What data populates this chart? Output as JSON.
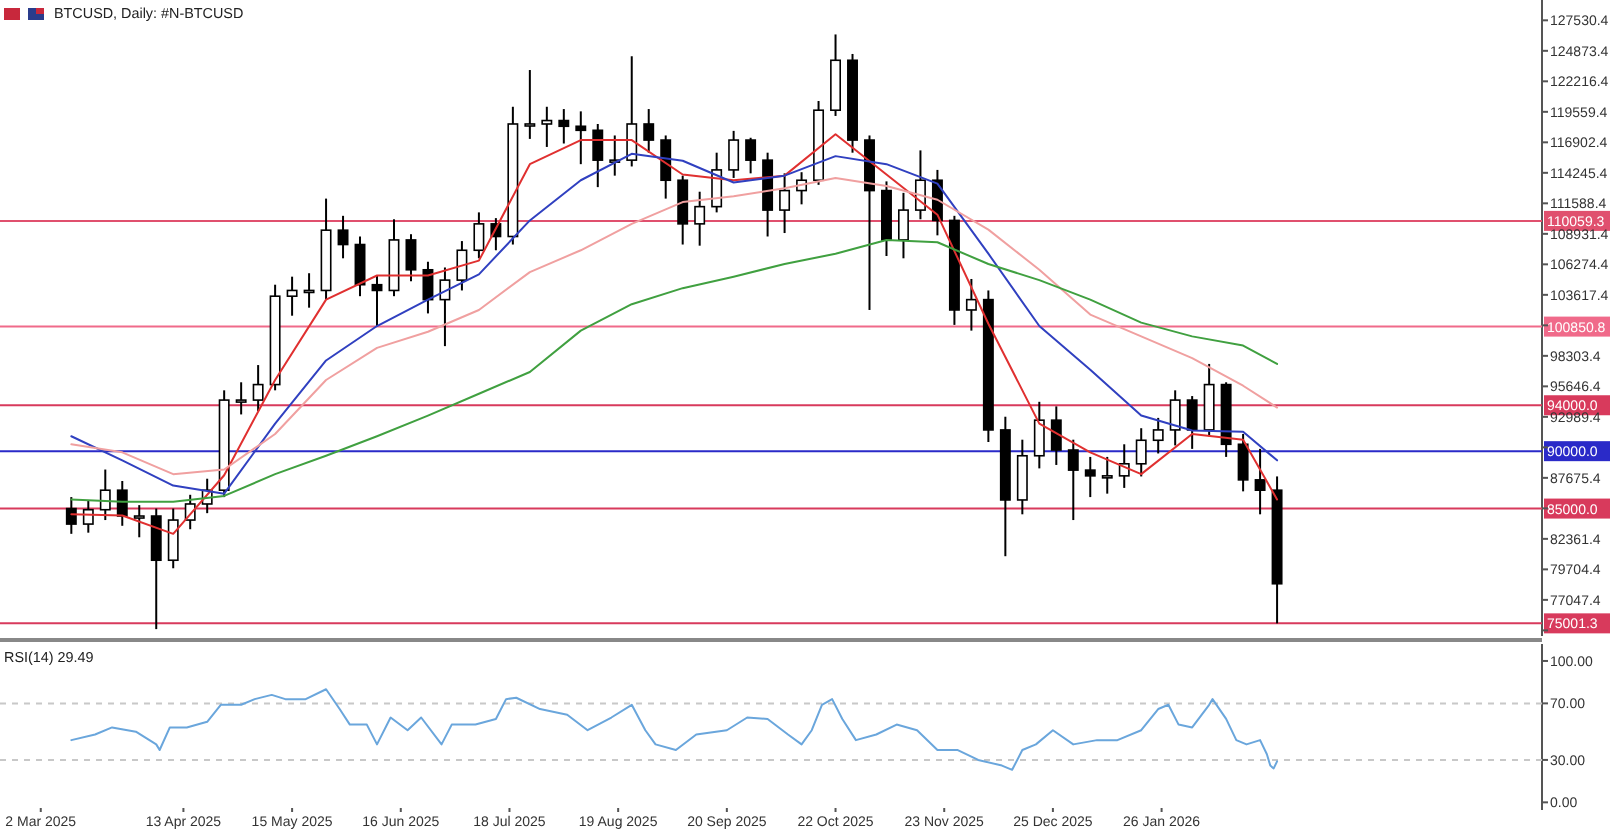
{
  "chart_data": [
    {
      "type": "candlestick",
      "title": "BTCUSD, Daily: #N-BTCUSD",
      "tick_labels": "y",
      "xlim": [
        "2025-02-18",
        "2026-05-18"
      ],
      "ylim": [
        73900,
        129300
      ],
      "yticks": [
        127530.4,
        124873.4,
        122216.4,
        119559.4,
        116902.4,
        114245.4,
        111588.4,
        108931.4,
        106274.4,
        103617.4,
        {
          "value": 100960.4,
          "label": null
        },
        98303.4,
        95646.4,
        92989.4,
        {
          "value": 90332.4,
          "label": null
        },
        87675.4,
        {
          "value": 85018.4,
          "label": null
        },
        82361.4,
        79704.4,
        77047.4,
        {
          "value": 74390.4,
          "label": null
        }
      ],
      "x": [
        "2025-03-11",
        "2025-03-16",
        "2025-03-21",
        "2025-03-26",
        "2025-03-31",
        "2025-04-05",
        "2025-04-10",
        "2025-04-15",
        "2025-04-20",
        "2025-04-25",
        "2025-04-30",
        "2025-05-05",
        "2025-05-10",
        "2025-05-15",
        "2025-05-20",
        "2025-05-25",
        "2025-05-30",
        "2025-06-04",
        "2025-06-09",
        "2025-06-14",
        "2025-06-19",
        "2025-06-24",
        "2025-06-29",
        "2025-07-04",
        "2025-07-09",
        "2025-07-14",
        "2025-07-19",
        "2025-07-24",
        "2025-07-29",
        "2025-08-03",
        "2025-08-08",
        "2025-08-13",
        "2025-08-18",
        "2025-08-23",
        "2025-08-28",
        "2025-09-02",
        "2025-09-07",
        "2025-09-12",
        "2025-09-17",
        "2025-09-22",
        "2025-09-27",
        "2025-10-02",
        "2025-10-07",
        "2025-10-12",
        "2025-10-17",
        "2025-10-22",
        "2025-10-27",
        "2025-11-01",
        "2025-11-06",
        "2025-11-11",
        "2025-11-16",
        "2025-11-21",
        "2025-11-26",
        "2025-12-01",
        "2025-12-06",
        "2025-12-11",
        "2025-12-16",
        "2025-12-21",
        "2025-12-26",
        "2025-12-31",
        "2026-01-05",
        "2026-01-10",
        "2026-01-15",
        "2026-01-20",
        "2026-01-25",
        "2026-01-30",
        "2026-02-04",
        "2026-02-09",
        "2026-02-14",
        "2026-02-19",
        "2026-02-24",
        "2026-03-01"
      ],
      "ohlc": [
        [
          85000,
          86000,
          82800,
          83650
        ],
        [
          83650,
          85700,
          82900,
          84900
        ],
        [
          84900,
          88400,
          84000,
          86600
        ],
        [
          86600,
          87400,
          83500,
          84350
        ],
        [
          84350,
          85300,
          82500,
          84350
        ],
        [
          84350,
          85000,
          74500,
          80500
        ],
        [
          80500,
          85000,
          79800,
          84000
        ],
        [
          84000,
          86200,
          83200,
          85400
        ],
        [
          85400,
          87600,
          84600,
          86600
        ],
        [
          86600,
          95300,
          86000,
          94450
        ],
        [
          94450,
          96000,
          93200,
          94450
        ],
        [
          94450,
          97500,
          93500,
          95800
        ],
        [
          95800,
          104500,
          95300,
          103500
        ],
        [
          103500,
          105200,
          101800,
          104000
        ],
        [
          104000,
          105500,
          102500,
          104000
        ],
        [
          104000,
          112000,
          103200,
          109250
        ],
        [
          109250,
          110500,
          106800,
          108000
        ],
        [
          108000,
          108700,
          103500,
          104500
        ],
        [
          104500,
          105300,
          100900,
          104000
        ],
        [
          104000,
          110200,
          103500,
          108400
        ],
        [
          108400,
          108900,
          104800,
          105800
        ],
        [
          105800,
          106500,
          102000,
          103200
        ],
        [
          103200,
          106000,
          99150,
          104900
        ],
        [
          104900,
          108300,
          104000,
          107500
        ],
        [
          107500,
          110800,
          106800,
          109800
        ],
        [
          109800,
          110300,
          107500,
          108700
        ],
        [
          108700,
          120000,
          108000,
          118500
        ],
        [
          118500,
          123200,
          117200,
          118500
        ],
        [
          118500,
          120000,
          116500,
          118800
        ],
        [
          118800,
          119800,
          116800,
          118300
        ],
        [
          118300,
          119600,
          115000,
          117950
        ],
        [
          117950,
          118500,
          113000,
          115350
        ],
        [
          115350,
          117500,
          114000,
          115350
        ],
        [
          115350,
          124400,
          114800,
          118500
        ],
        [
          118500,
          119800,
          116000,
          117100
        ],
        [
          117100,
          117500,
          112000,
          113600
        ],
        [
          113600,
          114000,
          108000,
          109800
        ],
        [
          109800,
          112600,
          107900,
          111300
        ],
        [
          111300,
          116000,
          110800,
          114500
        ],
        [
          114500,
          117900,
          113800,
          117100
        ],
        [
          117100,
          117300,
          114200,
          115350
        ],
        [
          115350,
          116000,
          108700,
          111000
        ],
        [
          111000,
          114200,
          109000,
          112700
        ],
        [
          112700,
          114300,
          111500,
          113600
        ],
        [
          113600,
          120500,
          113200,
          119700
        ],
        [
          119700,
          126300,
          119200,
          124050
        ],
        [
          124050,
          124600,
          116000,
          117100
        ],
        [
          117100,
          117500,
          102300,
          112700
        ],
        [
          112700,
          113500,
          107000,
          108400
        ],
        [
          108400,
          112500,
          106800,
          111000
        ],
        [
          111000,
          116200,
          110200,
          113600
        ],
        [
          113600,
          114500,
          108800,
          110100
        ],
        [
          110100,
          110500,
          101000,
          102300
        ],
        [
          102300,
          105000,
          100500,
          103200
        ],
        [
          103200,
          104000,
          90800,
          91850
        ],
        [
          91850,
          93000,
          80850,
          85750
        ],
        [
          85750,
          91000,
          84500,
          89600
        ],
        [
          89600,
          94300,
          88500,
          92700
        ],
        [
          92700,
          93900,
          88800,
          90100
        ],
        [
          90100,
          91000,
          84000,
          88350
        ],
        [
          88350,
          89500,
          86000,
          87850
        ],
        [
          87850,
          89500,
          86300,
          87850
        ],
        [
          87850,
          90600,
          86800,
          88900
        ],
        [
          88900,
          92000,
          87800,
          90950
        ],
        [
          90950,
          92900,
          89800,
          91850
        ],
        [
          91850,
          95300,
          90500,
          94450
        ],
        [
          94450,
          94800,
          90200,
          91850
        ],
        [
          91850,
          97600,
          91300,
          95800
        ],
        [
          95800,
          96000,
          89500,
          90600
        ],
        [
          90600,
          91500,
          86500,
          87500
        ],
        [
          87500,
          90200,
          84500,
          86600
        ],
        [
          86600,
          87800,
          75000,
          78450
        ]
      ],
      "series": [
        {
          "type": "line",
          "color": "#e03030",
          "x": [
            "2025-03-11",
            "2025-03-26",
            "2025-04-10",
            "2025-04-25",
            "2025-05-10",
            "2025-05-25",
            "2025-06-09",
            "2025-06-24",
            "2025-07-09",
            "2025-07-24",
            "2025-08-08",
            "2025-08-23",
            "2025-09-07",
            "2025-09-22",
            "2025-10-07",
            "2025-10-22",
            "2025-11-06",
            "2025-11-21",
            "2025-12-06",
            "2025-12-21",
            "2026-01-05",
            "2026-01-20",
            "2026-02-04",
            "2026-02-19",
            "2026-03-01"
          ],
          "values": [
            84500,
            84400,
            82800,
            87900,
            96200,
            103200,
            105300,
            105300,
            106600,
            115000,
            117100,
            117100,
            114100,
            113600,
            114000,
            117600,
            114100,
            110600,
            101100,
            92400,
            89900,
            88000,
            91500,
            91000,
            85800
          ]
        },
        {
          "type": "line",
          "color": "#3040c0",
          "x": [
            "2025-03-11",
            "2025-03-26",
            "2025-04-10",
            "2025-04-25",
            "2025-05-10",
            "2025-05-25",
            "2025-06-09",
            "2025-06-24",
            "2025-07-09",
            "2025-07-24",
            "2025-08-08",
            "2025-08-23",
            "2025-09-07",
            "2025-09-22",
            "2025-10-07",
            "2025-10-22",
            "2025-11-06",
            "2025-11-21",
            "2025-12-06",
            "2025-12-21",
            "2026-01-05",
            "2026-01-20",
            "2026-02-04",
            "2026-02-19",
            "2026-03-01"
          ],
          "values": [
            91300,
            89200,
            87000,
            86300,
            92400,
            97900,
            100900,
            103200,
            105400,
            110100,
            113600,
            115900,
            115300,
            113400,
            114000,
            115700,
            115000,
            113300,
            107200,
            100900,
            97100,
            93100,
            91800,
            91700,
            89200
          ]
        },
        {
          "type": "line",
          "color": "#f0a0a0",
          "x": [
            "2025-03-11",
            "2025-03-26",
            "2025-04-10",
            "2025-04-25",
            "2025-05-10",
            "2025-05-25",
            "2025-06-09",
            "2025-06-24",
            "2025-07-09",
            "2025-07-24",
            "2025-08-08",
            "2025-08-23",
            "2025-09-07",
            "2025-09-22",
            "2025-10-07",
            "2025-10-22",
            "2025-11-06",
            "2025-11-21",
            "2025-12-06",
            "2025-12-21",
            "2026-01-05",
            "2026-01-20",
            "2026-02-04",
            "2026-02-19",
            "2026-03-01"
          ],
          "values": [
            90600,
            89900,
            88000,
            88400,
            91500,
            96200,
            99000,
            100400,
            102300,
            105600,
            107500,
            109800,
            111700,
            112200,
            112900,
            113800,
            113100,
            111900,
            109300,
            105800,
            101900,
            100000,
            98100,
            95700,
            93800
          ]
        },
        {
          "type": "line",
          "color": "#40a040",
          "x": [
            "2025-03-11",
            "2025-03-26",
            "2025-04-10",
            "2025-04-25",
            "2025-05-10",
            "2025-05-25",
            "2025-06-09",
            "2025-06-24",
            "2025-07-09",
            "2025-07-24",
            "2025-08-08",
            "2025-08-23",
            "2025-09-07",
            "2025-09-22",
            "2025-10-07",
            "2025-10-22",
            "2025-11-06",
            "2025-11-21",
            "2025-12-06",
            "2025-12-21",
            "2026-01-05",
            "2026-01-20",
            "2026-02-04",
            "2026-02-19",
            "2026-03-01"
          ],
          "values": [
            85800,
            85600,
            85600,
            86100,
            88000,
            89600,
            91300,
            93100,
            95000,
            96900,
            100500,
            102800,
            104200,
            105200,
            106300,
            107200,
            108400,
            108200,
            106300,
            104900,
            103200,
            101200,
            100000,
            99200,
            97600
          ]
        }
      ],
      "ref_lines": [
        {
          "axis": "y",
          "value": 110059.3,
          "label": "110059.3",
          "color": "#e0506e"
        },
        {
          "axis": "y",
          "value": 100850.8,
          "label": "100850.8",
          "color": "#f06a8a"
        },
        {
          "axis": "y",
          "value": 94000.0,
          "label": "94000.0",
          "color": "#d83a5c"
        },
        {
          "axis": "y",
          "value": 90000.0,
          "label": "90000.0",
          "color": "#2a2ac8"
        },
        {
          "axis": "y",
          "value": 85000.0,
          "label": "85000.0",
          "color": "#d83a5c"
        },
        {
          "axis": "y",
          "value": 75001.3,
          "label": "75001.3",
          "color": "#d83a5c"
        }
      ]
    },
    {
      "type": "line",
      "title": "RSI(14) 29.49",
      "xlim": [
        "2025-02-18",
        "2026-05-18"
      ],
      "xticks": [
        {
          "value": "2025-03-02",
          "label": "2 Mar 2025"
        },
        {
          "value": "2025-04-13",
          "label": "13 Apr 2025"
        },
        {
          "value": "2025-05-15",
          "label": "15 May 2025"
        },
        {
          "value": "2025-06-16",
          "label": "16 Jun 2025"
        },
        {
          "value": "2025-07-18",
          "label": "18 Jul 2025"
        },
        {
          "value": "2025-08-19",
          "label": "19 Aug 2025"
        },
        {
          "value": "2025-09-20",
          "label": "20 Sep 2025"
        },
        {
          "value": "2025-10-22",
          "label": "22 Oct 2025"
        },
        {
          "value": "2025-11-23",
          "label": "23 Nov 2025"
        },
        {
          "value": "2025-12-25",
          "label": "25 Dec 2025"
        },
        {
          "value": "2026-01-26",
          "label": "26 Jan 2026"
        }
      ],
      "ylim": [
        -4,
        112
      ],
      "yticks": [
        {
          "value": 0,
          "label": "0.00"
        },
        {
          "value": 30,
          "label": "30.00"
        },
        {
          "value": 70,
          "label": "70.00"
        },
        {
          "value": 100,
          "label": "100.00"
        }
      ],
      "series": [
        {
          "color": "#6aa6dc",
          "x": [
            "2025-03-11",
            "2025-03-18",
            "2025-03-23",
            "2025-03-30",
            "2025-04-05",
            "2025-04-06",
            "2025-04-09",
            "2025-04-14",
            "2025-04-20",
            "2025-04-24",
            "2025-04-30",
            "2025-05-04",
            "2025-05-09",
            "2025-05-13",
            "2025-05-19",
            "2025-05-25",
            "2025-05-29",
            "2025-06-01",
            "2025-06-06",
            "2025-06-09",
            "2025-06-13",
            "2025-06-18",
            "2025-06-22",
            "2025-06-28",
            "2025-07-01",
            "2025-07-08",
            "2025-07-14",
            "2025-07-17",
            "2025-07-20",
            "2025-07-27",
            "2025-08-04",
            "2025-08-10",
            "2025-08-17",
            "2025-08-23",
            "2025-08-27",
            "2025-08-30",
            "2025-09-05",
            "2025-09-11",
            "2025-09-20",
            "2025-09-26",
            "2025-10-02",
            "2025-10-08",
            "2025-10-12",
            "2025-10-15",
            "2025-10-18",
            "2025-10-21",
            "2025-10-24",
            "2025-10-28",
            "2025-11-03",
            "2025-11-09",
            "2025-11-15",
            "2025-11-21",
            "2025-11-27",
            "2025-12-03",
            "2025-12-10",
            "2025-12-13",
            "2025-12-16",
            "2025-12-20",
            "2025-12-25",
            "2025-12-31",
            "2026-01-07",
            "2026-01-13",
            "2026-01-20",
            "2026-01-25",
            "2026-01-28",
            "2026-01-31",
            "2026-02-04",
            "2026-02-09",
            "2026-02-10",
            "2026-02-14",
            "2026-02-17",
            "2026-02-20",
            "2026-02-24",
            "2026-02-26",
            "2026-02-27",
            "2026-02-28",
            "2026-03-01"
          ],
          "values": [
            44,
            48,
            53,
            50,
            41,
            37,
            53,
            53,
            57,
            69,
            69,
            73,
            76,
            73,
            73,
            80,
            66,
            55,
            55,
            41,
            60,
            51,
            60,
            41,
            55,
            55,
            59,
            73,
            74,
            66,
            62,
            51,
            60,
            69,
            51,
            41,
            37,
            48,
            51,
            60,
            59,
            48,
            41,
            51,
            69,
            73,
            59,
            44,
            48,
            55,
            51,
            37,
            37,
            30,
            26,
            23,
            37,
            41,
            51,
            41,
            44,
            44,
            51,
            66,
            69,
            55,
            53,
            69,
            73,
            59,
            44,
            41,
            44,
            34,
            26,
            24,
            29
          ]
        }
      ],
      "ref_lines": [
        {
          "axis": "y",
          "value": 70,
          "color": "#c8c8c8",
          "line_style": "dashed"
        },
        {
          "axis": "y",
          "value": 30,
          "color": "#c8c8c8",
          "line_style": "dashed"
        }
      ]
    }
  ]
}
